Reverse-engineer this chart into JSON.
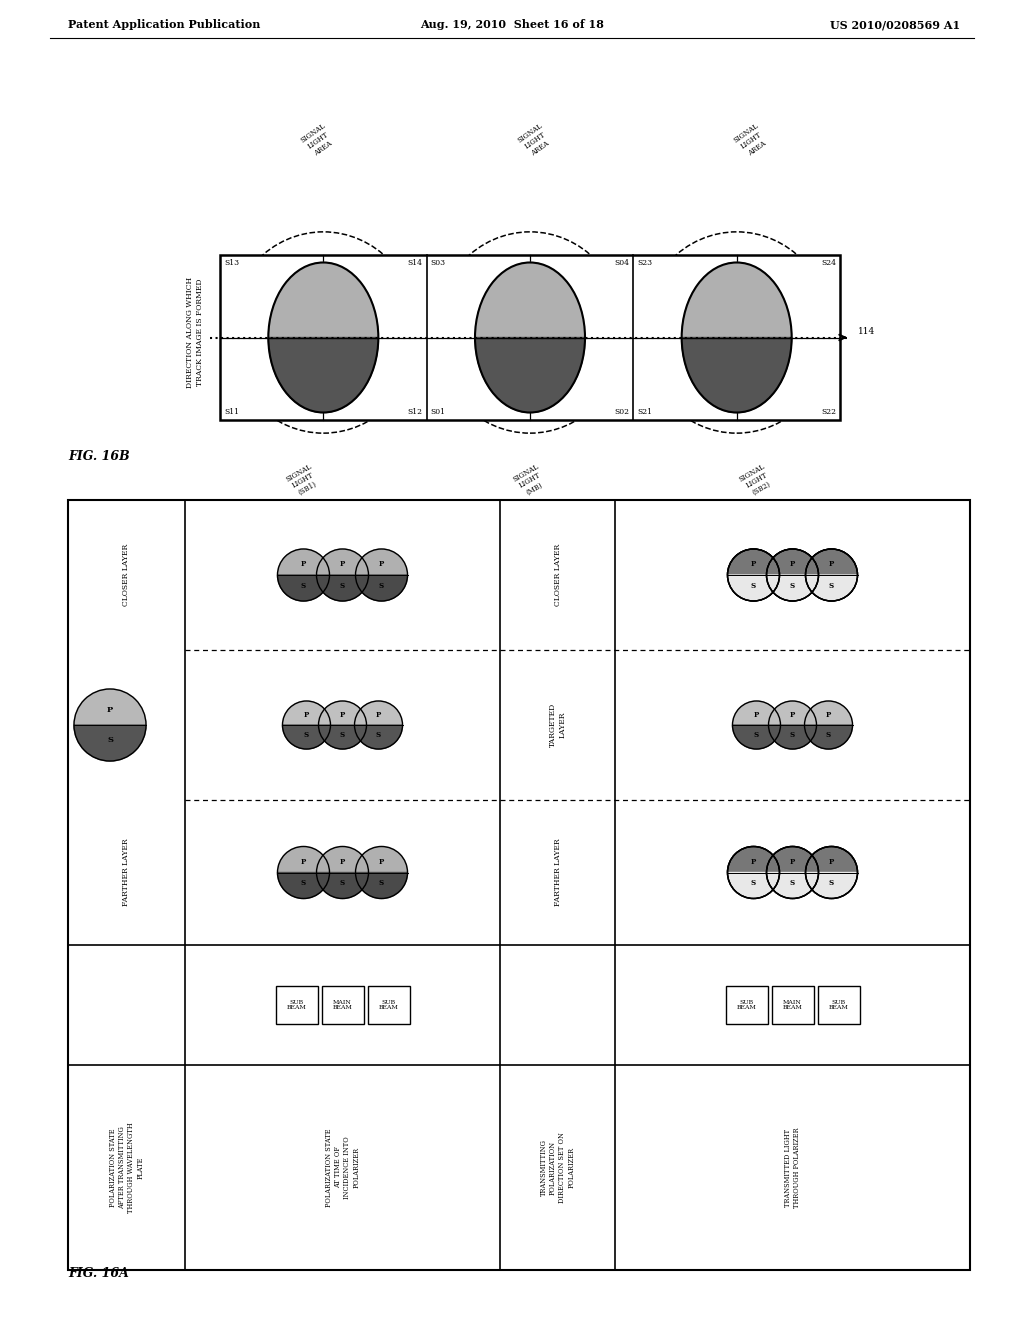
{
  "title_left": "Patent Application Publication",
  "title_center": "Aug. 19, 2010  Sheet 16 of 18",
  "title_right": "US 2010/0208569 A1",
  "bg_color": "#ffffff"
}
